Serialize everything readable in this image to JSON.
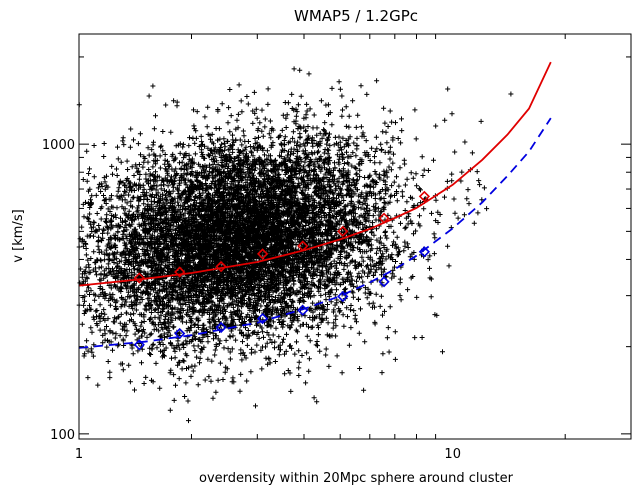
{
  "chart_data": {
    "type": "scatter",
    "title": "WMAP5 / 1.2GPc",
    "xlabel": "overdensity within 20Mpc sphere around cluster",
    "ylabel": "v [km/s]",
    "x_scale": "log",
    "y_scale": "log",
    "xlim": [
      1,
      30
    ],
    "ylim": [
      96,
      2400
    ],
    "x_ticks": [
      1,
      10
    ],
    "y_ticks": [
      100,
      1000
    ],
    "grid": false,
    "scatter_cloud": {
      "marker": "plus",
      "color": "#000000",
      "approx_points": 9000,
      "center_overdensity": 2.7,
      "center_velocity": 470,
      "x_range": [
        1.0,
        19.0
      ],
      "y_range": [
        100,
        1900
      ]
    },
    "series": [
      {
        "marker": "diamond",
        "style": "solid",
        "color": "#e00000",
        "x": [
          1.45,
          1.86,
          2.4,
          3.1,
          3.97,
          5.08,
          6.55,
          8.4
        ],
        "y": [
          345,
          362,
          378,
          418,
          445,
          500,
          555,
          660
        ],
        "fit_x": [
          1.0,
          1.5,
          2.0,
          3.0,
          4.0,
          5.0,
          6.0,
          7.0,
          8.0,
          10.0,
          12.0,
          14.0,
          16.0,
          18.3
        ],
        "fit_y": [
          325,
          343,
          359,
          392,
          430,
          469,
          510,
          556,
          602,
          724,
          883,
          1077,
          1326,
          1920
        ]
      },
      {
        "marker": "diamond",
        "style": "dashed",
        "color": "#0000e0",
        "x": [
          1.45,
          1.86,
          2.4,
          3.1,
          3.97,
          5.08,
          6.55,
          8.4
        ],
        "y": [
          203,
          222,
          233,
          250,
          267,
          298,
          335,
          425
        ],
        "fit_x": [
          1.0,
          1.5,
          2.0,
          3.0,
          4.0,
          5.0,
          6.0,
          7.0,
          8.0,
          10.0,
          12.0,
          14.0,
          16.0,
          18.3
        ],
        "fit_y": [
          198,
          208,
          219,
          242,
          270,
          299,
          333,
          370,
          412,
          512,
          630,
          776,
          943,
          1230
        ]
      }
    ]
  }
}
